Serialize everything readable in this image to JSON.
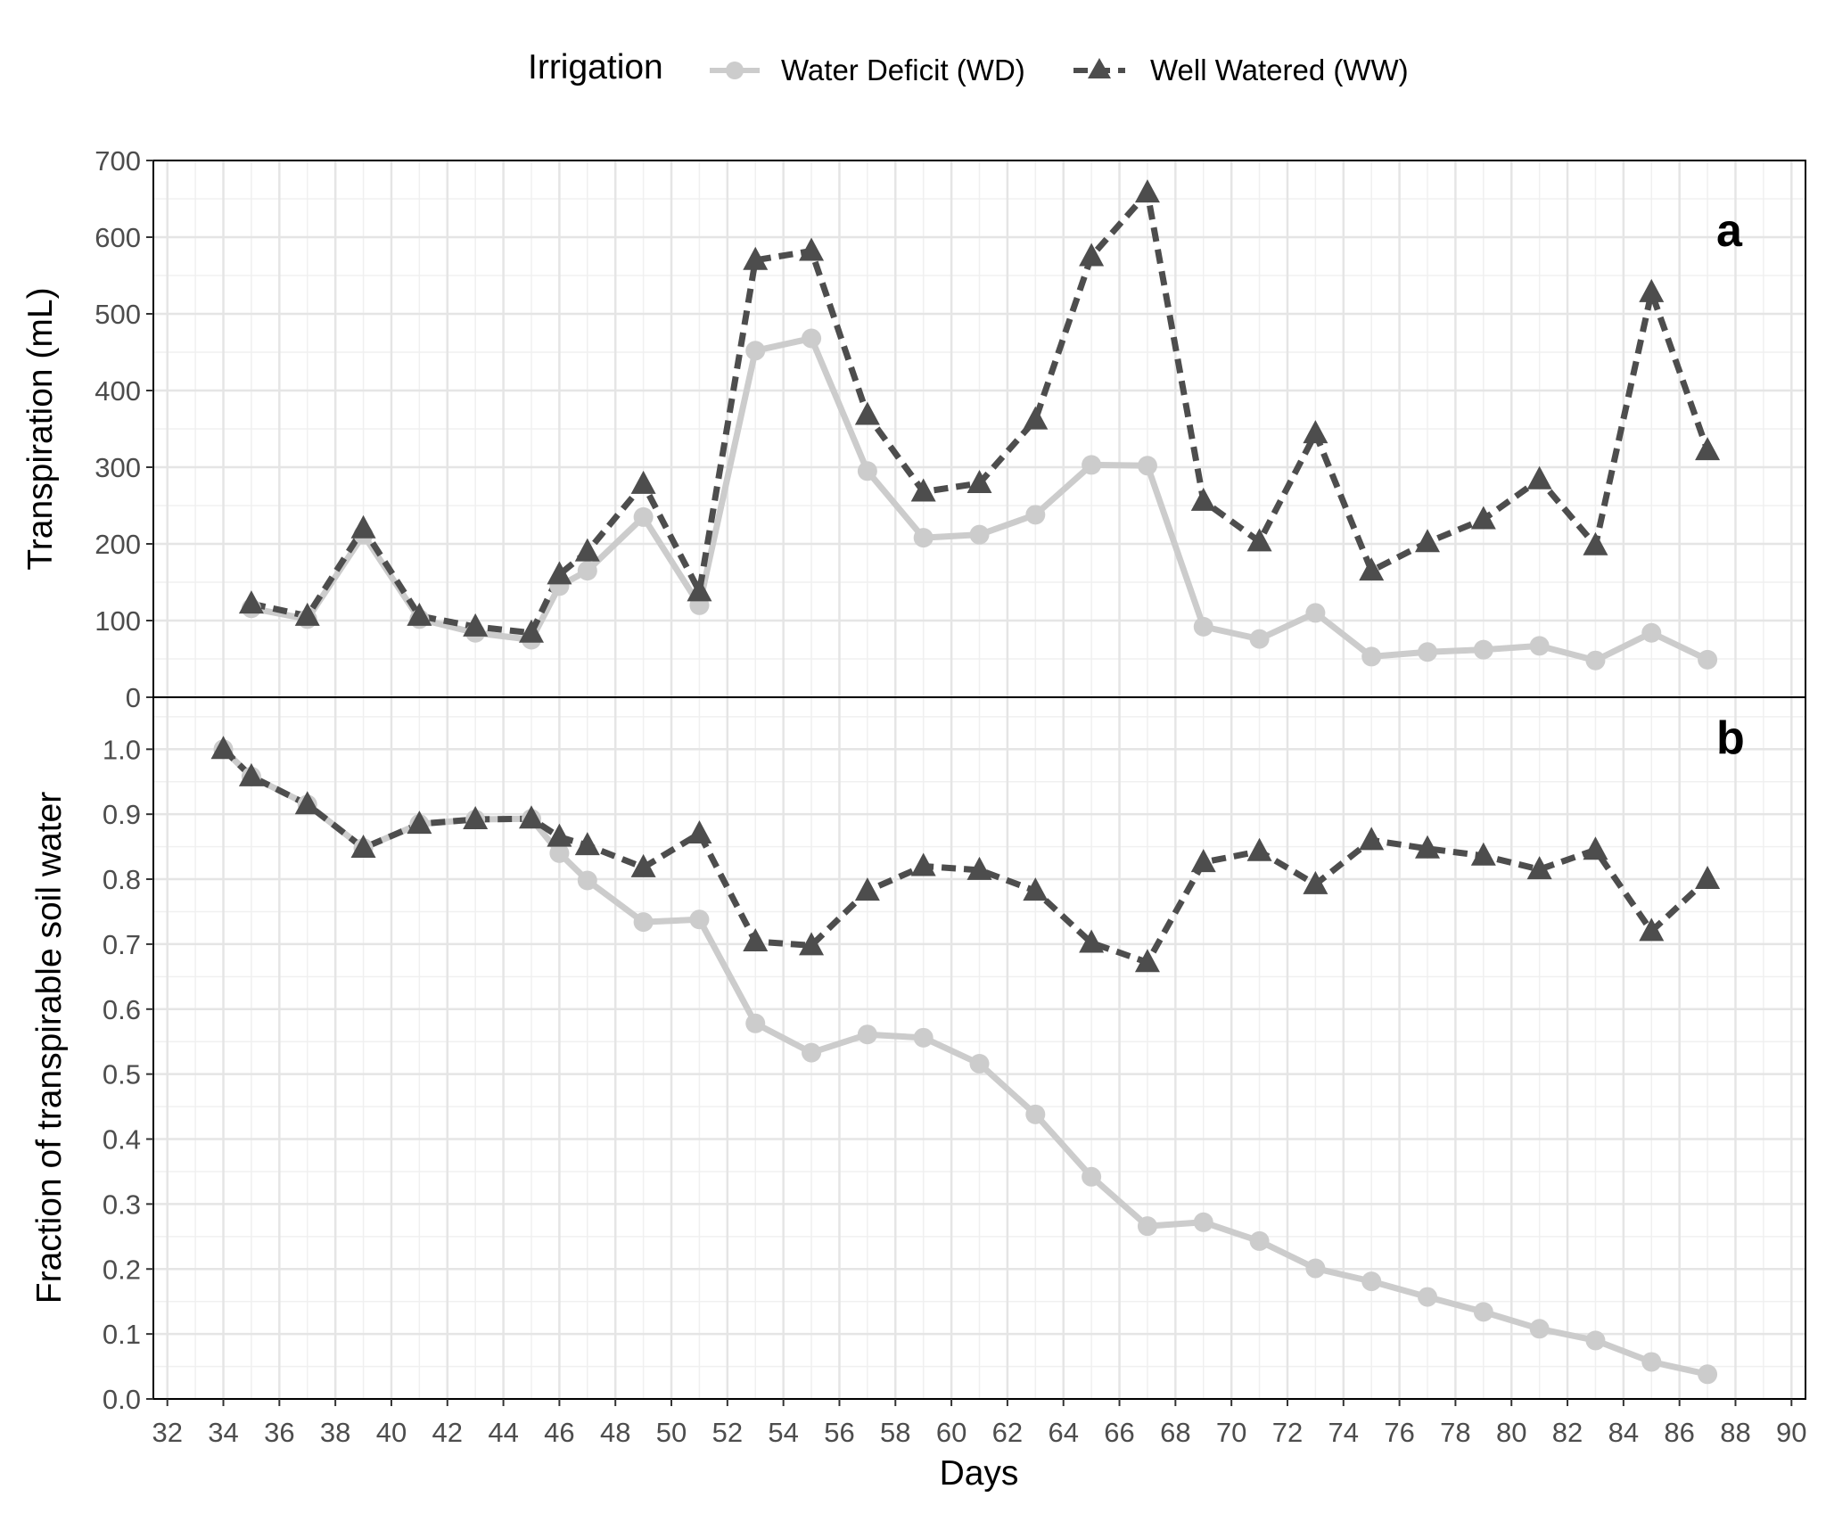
{
  "legend": {
    "title": "Irrigation",
    "items": [
      {
        "label": "Water Deficit (WD)",
        "color": "#cccccc",
        "marker": "circle",
        "line": "solid"
      },
      {
        "label": "Well Watered (WW)",
        "color": "#4d4d4d",
        "marker": "triangle",
        "line": "dashed"
      }
    ],
    "position": "top"
  },
  "chart_data": [
    {
      "type": "line",
      "panel": "a",
      "xlabel": "",
      "ylabel": "Transpiration (mL)",
      "xlim": [
        31.5,
        90.5
      ],
      "ylim": [
        0,
        700
      ],
      "x_ticks": [
        32,
        34,
        36,
        38,
        40,
        42,
        44,
        46,
        48,
        50,
        52,
        54,
        56,
        58,
        60,
        62,
        64,
        66,
        68,
        70,
        72,
        74,
        76,
        78,
        80,
        82,
        84,
        86,
        88,
        90
      ],
      "y_ticks": [
        0,
        100,
        200,
        300,
        400,
        500,
        600,
        700
      ],
      "y_tick_labels": [
        "0",
        "100",
        "200",
        "300",
        "400",
        "500",
        "600",
        "700"
      ],
      "grid": true,
      "series": [
        {
          "name": "Water Deficit (WD)",
          "x": [
            35,
            37,
            39,
            41,
            43,
            45,
            46,
            47,
            49,
            51,
            53,
            55,
            57,
            59,
            61,
            63,
            65,
            67,
            69,
            71,
            73,
            75,
            77,
            79,
            81,
            83,
            85,
            87
          ],
          "y": [
            116,
            102,
            212,
            102,
            84,
            75,
            145,
            165,
            235,
            120,
            452,
            468,
            295,
            208,
            212,
            238,
            303,
            302,
            92,
            76,
            110,
            53,
            59,
            62,
            67,
            48,
            84,
            49
          ]
        },
        {
          "name": "Well Watered (WW)",
          "x": [
            35,
            37,
            39,
            41,
            43,
            45,
            46,
            47,
            49,
            51,
            53,
            55,
            57,
            59,
            61,
            63,
            65,
            67,
            69,
            71,
            73,
            75,
            77,
            79,
            81,
            83,
            85,
            87
          ],
          "y": [
            122,
            106,
            220,
            106,
            92,
            84,
            160,
            190,
            278,
            138,
            570,
            582,
            368,
            268,
            279,
            362,
            575,
            658,
            256,
            203,
            344,
            165,
            202,
            232,
            284,
            198,
            528,
            322
          ]
        }
      ]
    },
    {
      "type": "line",
      "panel": "b",
      "xlabel": "Days",
      "ylabel": "Fraction of transpirable soil water",
      "xlim": [
        31.5,
        90.5
      ],
      "ylim": [
        0,
        1.08
      ],
      "x_ticks": [
        32,
        34,
        36,
        38,
        40,
        42,
        44,
        46,
        48,
        50,
        52,
        54,
        56,
        58,
        60,
        62,
        64,
        66,
        68,
        70,
        72,
        74,
        76,
        78,
        80,
        82,
        84,
        86,
        88,
        90
      ],
      "y_ticks": [
        0,
        0.1,
        0.2,
        0.3,
        0.4,
        0.5,
        0.6,
        0.7,
        0.8,
        0.9,
        1.0
      ],
      "y_tick_labels": [
        "0.0",
        "0.1",
        "0.2",
        "0.3",
        "0.4",
        "0.5",
        "0.6",
        "0.7",
        "0.8",
        "0.9",
        "1.0"
      ],
      "grid": true,
      "series": [
        {
          "name": "Water Deficit (WD)",
          "x": [
            34,
            35,
            37,
            39,
            41,
            43,
            45,
            46,
            47,
            49,
            51,
            53,
            55,
            57,
            59,
            61,
            63,
            65,
            67,
            69,
            71,
            73,
            75,
            77,
            79,
            81,
            83,
            85,
            87
          ],
          "y": [
            1.0,
            0.958,
            0.915,
            0.848,
            0.885,
            0.892,
            0.893,
            0.84,
            0.798,
            0.734,
            0.738,
            0.578,
            0.533,
            0.561,
            0.556,
            0.516,
            0.438,
            0.342,
            0.266,
            0.272,
            0.243,
            0.201,
            0.181,
            0.157,
            0.134,
            0.108,
            0.09,
            0.057,
            0.038
          ]
        },
        {
          "name": "Well Watered (WW)",
          "x": [
            34,
            35,
            37,
            39,
            41,
            43,
            45,
            46,
            47,
            49,
            51,
            53,
            55,
            57,
            59,
            61,
            63,
            65,
            67,
            69,
            71,
            73,
            75,
            77,
            79,
            81,
            83,
            85,
            87
          ],
          "y": [
            1.0,
            0.958,
            0.915,
            0.848,
            0.885,
            0.892,
            0.893,
            0.865,
            0.852,
            0.818,
            0.87,
            0.704,
            0.698,
            0.782,
            0.82,
            0.814,
            0.782,
            0.702,
            0.672,
            0.826,
            0.843,
            0.792,
            0.86,
            0.847,
            0.836,
            0.815,
            0.845,
            0.72,
            0.8
          ]
        }
      ]
    }
  ]
}
